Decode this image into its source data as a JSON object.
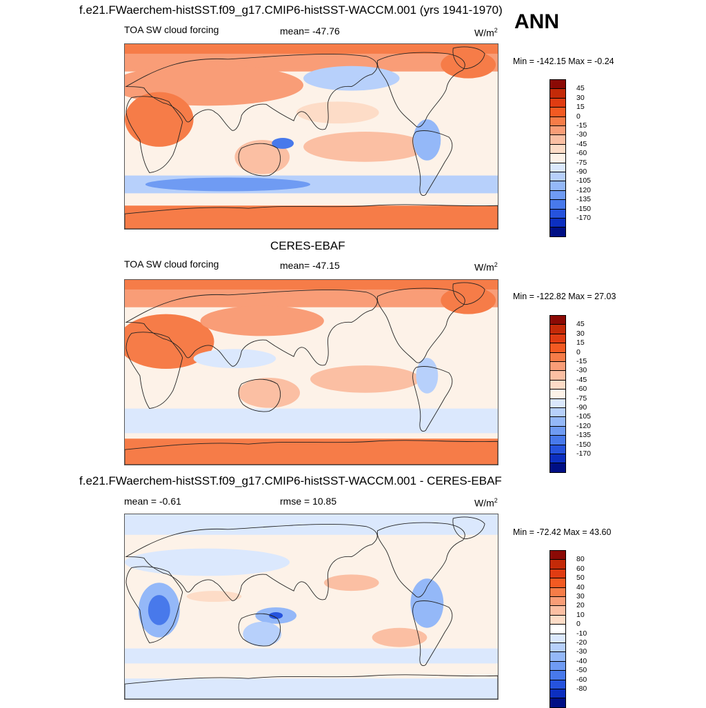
{
  "season": "ANN",
  "panels": [
    {
      "title": "f.e21.FWaerchem-histSST.f09_g17.CMIP6-histSST-WACCM.001 (yrs 1941-1970)",
      "left_label": "TOA SW cloud forcing",
      "mid_label": "mean= -47.76",
      "units": "W/m",
      "units_sup": "2",
      "minmax": "Min = -142.15 Max =  -0.24",
      "map_image": "global-field-map-model",
      "colorbar": {
        "labels": [
          "45",
          "30",
          "15",
          "0",
          "-15",
          "-30",
          "-45",
          "-60",
          "-75",
          "-90",
          "-105",
          "-120",
          "-135",
          "-150",
          "-170"
        ],
        "colors": [
          "#8b0a05",
          "#c42a08",
          "#e03c12",
          "#f35a22",
          "#f67c48",
          "#f99d77",
          "#fbbfa3",
          "#fddcc7",
          "#fdf2e8",
          "#dbe8fd",
          "#b7d0fb",
          "#94b8f8",
          "#6f9bf3",
          "#4879eb",
          "#2653dd",
          "#0c2fc0",
          "#000f85"
        ]
      },
      "chart_data": {
        "type": "heatmap",
        "title": "f.e21.FWaerchem-histSST.f09_g17.CMIP6-histSST-WACCM.001 (yrs 1941-1970)",
        "variable": "TOA SW cloud forcing",
        "mean": -47.76,
        "min": -142.15,
        "max": -0.24,
        "units": "W/m2"
      }
    },
    {
      "title": "CERES-EBAF",
      "left_label": "TOA SW cloud forcing",
      "mid_label": "mean= -47.15",
      "units": "W/m",
      "units_sup": "2",
      "minmax": "Min = -122.82 Max =  27.03",
      "map_image": "global-field-map-obs",
      "colorbar": {
        "labels": [
          "45",
          "30",
          "15",
          "0",
          "-15",
          "-30",
          "-45",
          "-60",
          "-75",
          "-90",
          "-105",
          "-120",
          "-135",
          "-150",
          "-170"
        ],
        "colors": [
          "#8b0a05",
          "#c42a08",
          "#e03c12",
          "#f35a22",
          "#f67c48",
          "#f99d77",
          "#fbbfa3",
          "#fddcc7",
          "#fdf2e8",
          "#dbe8fd",
          "#b7d0fb",
          "#94b8f8",
          "#6f9bf3",
          "#4879eb",
          "#2653dd",
          "#0c2fc0",
          "#000f85"
        ]
      },
      "chart_data": {
        "type": "heatmap",
        "title": "CERES-EBAF",
        "variable": "TOA SW cloud forcing",
        "mean": -47.15,
        "min": -122.82,
        "max": 27.03,
        "units": "W/m2"
      }
    },
    {
      "title": "f.e21.FWaerchem-histSST.f09_g17.CMIP6-histSST-WACCM.001 - CERES-EBAF",
      "left_label": "mean =  -0.61",
      "mid_label": "rmse =  10.85",
      "units": "W/m",
      "units_sup": "2",
      "minmax": "Min = -72.42 Max =  43.60",
      "map_image": "global-difference-map",
      "colorbar": {
        "labels": [
          "80",
          "60",
          "50",
          "40",
          "30",
          "20",
          "10",
          "0",
          "-10",
          "-20",
          "-30",
          "-40",
          "-50",
          "-60",
          "-80"
        ],
        "colors": [
          "#8b0a05",
          "#c42a08",
          "#e03c12",
          "#f35a22",
          "#f67c48",
          "#f99d77",
          "#fbbfa3",
          "#fddcc7",
          "#ffffff",
          "#dbe8fd",
          "#b7d0fb",
          "#94b8f8",
          "#6f9bf3",
          "#4879eb",
          "#2653dd",
          "#0c2fc0",
          "#000f85"
        ]
      },
      "chart_data": {
        "type": "heatmap",
        "title": "f.e21.FWaerchem-histSST.f09_g17.CMIP6-histSST-WACCM.001 - CERES-EBAF",
        "mean": -0.61,
        "rmse": 10.85,
        "min": -72.42,
        "max": 43.6,
        "units": "W/m2"
      }
    }
  ]
}
